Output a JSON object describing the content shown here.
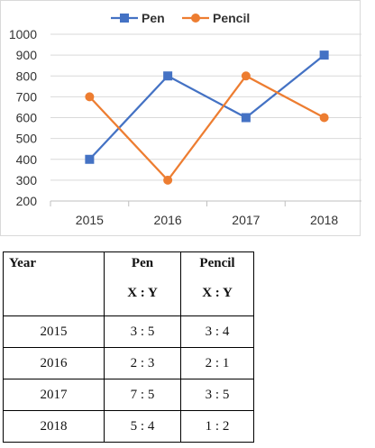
{
  "chart_data": {
    "type": "line",
    "categories": [
      "2015",
      "2016",
      "2017",
      "2018"
    ],
    "series": [
      {
        "name": "Pen",
        "values": [
          400,
          800,
          600,
          900
        ],
        "color": "#4472c4",
        "marker": "square"
      },
      {
        "name": "Pencil",
        "values": [
          700,
          300,
          800,
          600
        ],
        "color": "#ed7d31",
        "marker": "circle"
      }
    ],
    "ylim": [
      200,
      1000
    ],
    "yticks": [
      "200",
      "300",
      "400",
      "500",
      "600",
      "700",
      "800",
      "900",
      "1000"
    ],
    "grid": true,
    "legend_position": "top"
  },
  "table": {
    "headers": [
      {
        "line1": "Year",
        "line2": ""
      },
      {
        "line1": "Pen",
        "line2": "X : Y"
      },
      {
        "line1": "Pencil",
        "line2": "X : Y"
      }
    ],
    "rows": [
      [
        "2015",
        "3 : 5",
        "3 : 4"
      ],
      [
        "2016",
        "2 : 3",
        "2 : 1"
      ],
      [
        "2017",
        "7 : 5",
        "3 : 5"
      ],
      [
        "2018",
        "5 : 4",
        "1 : 2"
      ]
    ]
  }
}
